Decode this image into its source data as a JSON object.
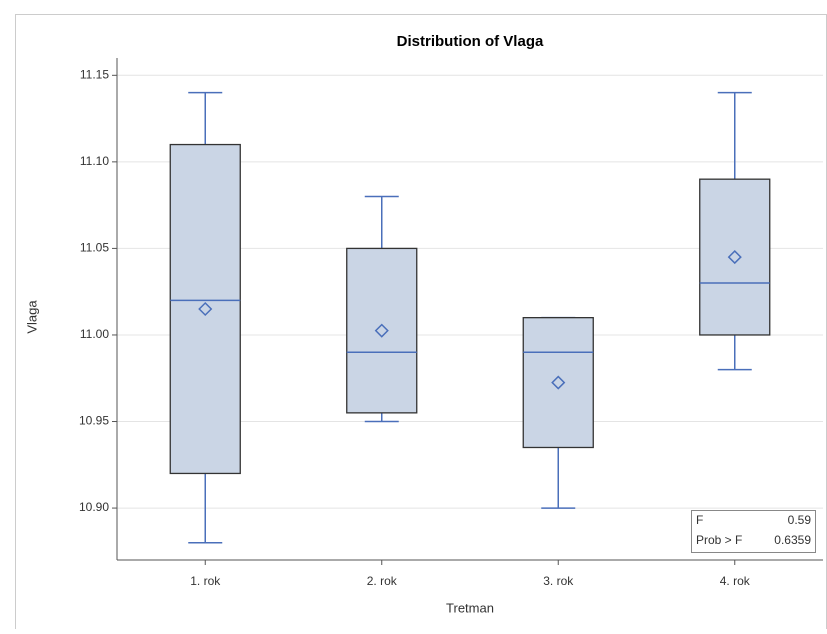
{
  "chart_data": {
    "type": "boxplot",
    "title": "Distribution of Vlaga",
    "x_label": "Tretman",
    "y_label": "Vlaga",
    "categories": [
      "1. rok",
      "2. rok",
      "3. rok",
      "4. rok"
    ],
    "boxes": [
      {
        "min": 10.88,
        "q1": 10.92,
        "median": 11.02,
        "q3": 11.11,
        "max": 11.14,
        "mean": 11.015
      },
      {
        "min": 10.95,
        "q1": 10.955,
        "median": 10.99,
        "q3": 11.05,
        "max": 11.08,
        "mean": 11.0025
      },
      {
        "min": 10.9,
        "q1": 10.935,
        "median": 10.99,
        "q3": 11.01,
        "max": 11.01,
        "mean": 10.9725
      },
      {
        "min": 10.98,
        "q1": 11.0,
        "median": 11.03,
        "q3": 11.09,
        "max": 11.14,
        "mean": 11.045
      }
    ],
    "box_color": "#cad5e5",
    "line_color": "#4a6fba",
    "ylim": [
      10.87,
      11.16
    ],
    "yticks": [
      {
        "value": 10.9,
        "label": "10.90"
      },
      {
        "value": 10.95,
        "label": "10.95"
      },
      {
        "value": 11.0,
        "label": "11.00"
      },
      {
        "value": 11.05,
        "label": "11.05"
      },
      {
        "value": 11.1,
        "label": "11.10"
      },
      {
        "value": 11.15,
        "label": "11.15"
      }
    ],
    "grid": true,
    "inset": [
      {
        "label": "F",
        "value": "0.59"
      },
      {
        "label": "Prob > F",
        "value": "0.6359"
      }
    ]
  }
}
